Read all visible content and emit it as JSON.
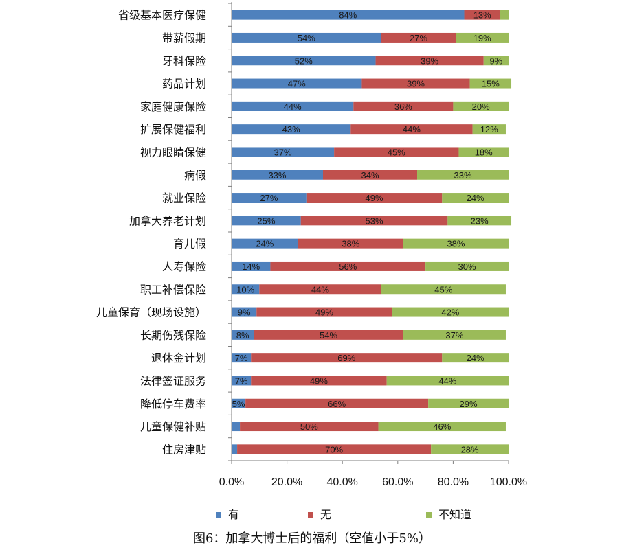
{
  "caption": "图6：加拿大博士后的福利（空值小于5%）",
  "colors": {
    "yes": "#4f81bd",
    "no": "#c0504d",
    "unknown": "#9bbb59"
  },
  "chart_data": {
    "type": "bar",
    "orientation": "horizontal",
    "stacked": true,
    "categories": [
      "省级基本医疗保健",
      "带薪假期",
      "牙科保险",
      "药品计划",
      "家庭健康保险",
      "扩展保健福利",
      "视力眼睛保健",
      "病假",
      "就业保险",
      "加拿大养老计划",
      "育儿假",
      "人寿保险",
      "职工补偿保险",
      "儿童保育（现场设施）",
      "长期伤残保险",
      "退休金计划",
      "法律签证服务",
      "降低停车费率",
      "儿童保健补贴",
      "住房津贴"
    ],
    "series": [
      {
        "name": "有",
        "values": [
          84,
          54,
          52,
          47,
          44,
          43,
          37,
          33,
          27,
          25,
          24,
          14,
          10,
          9,
          8,
          7,
          7,
          5,
          3,
          2
        ],
        "labels": [
          "84%",
          "54%",
          "52%",
          "47%",
          "44%",
          "43%",
          "37%",
          "33%",
          "27%",
          "25%",
          "24%",
          "14%",
          "10%",
          "9%",
          "8%",
          "7%",
          "7%",
          "5%",
          "",
          ""
        ]
      },
      {
        "name": "无",
        "values": [
          13,
          27,
          39,
          39,
          36,
          44,
          45,
          34,
          49,
          53,
          38,
          56,
          44,
          49,
          54,
          69,
          49,
          66,
          50,
          70
        ],
        "labels": [
          "13%",
          "27%",
          "39%",
          "39%",
          "36%",
          "44%",
          "45%",
          "34%",
          "49%",
          "53%",
          "38%",
          "56%",
          "44%",
          "49%",
          "54%",
          "69%",
          "49%",
          "66%",
          "50%",
          "70%"
        ]
      },
      {
        "name": "不知道",
        "values": [
          3,
          19,
          9,
          15,
          20,
          12,
          18,
          33,
          24,
          23,
          38,
          30,
          45,
          42,
          37,
          24,
          44,
          29,
          46,
          28
        ],
        "labels": [
          "",
          "19%",
          "9%",
          "15%",
          "20%",
          "12%",
          "18%",
          "33%",
          "24%",
          "23%",
          "38%",
          "30%",
          "45%",
          "42%",
          "37%",
          "24%",
          "44%",
          "29%",
          "46%",
          "28%"
        ]
      }
    ],
    "x_ticks": [
      "0.0%",
      "20.0%",
      "40.0%",
      "60.0%",
      "80.0%",
      "100.0%"
    ],
    "xlim": [
      0,
      100
    ],
    "grid": false,
    "legend_position": "bottom"
  }
}
